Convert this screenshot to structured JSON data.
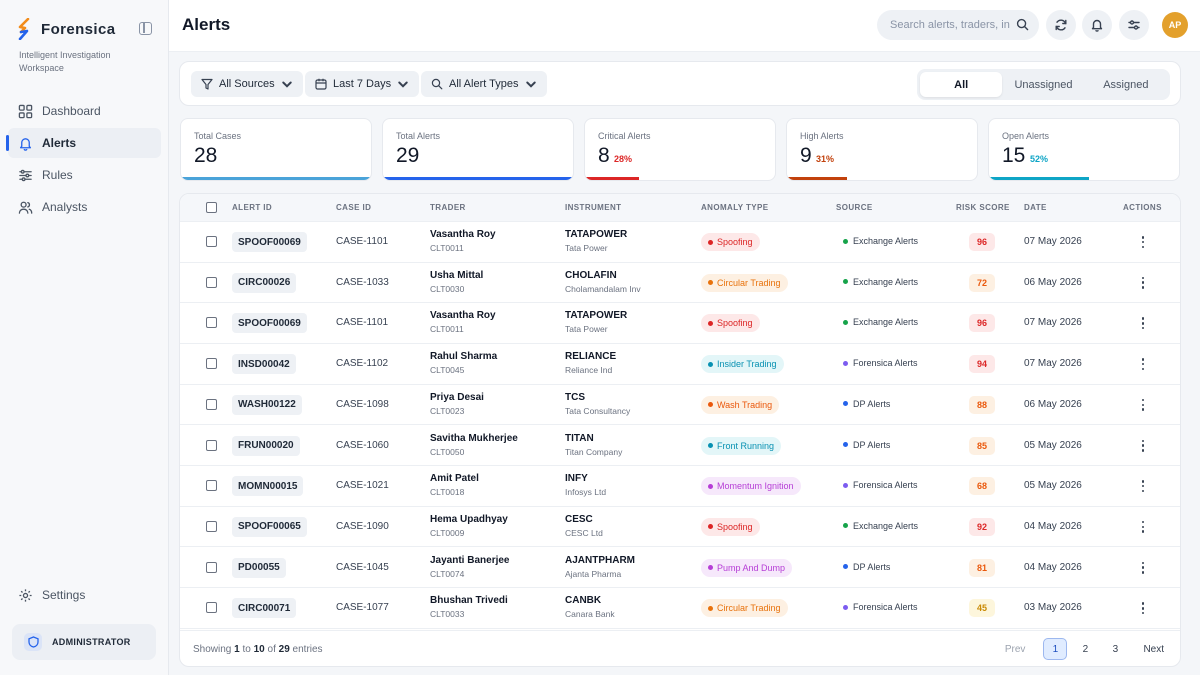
{
  "brand": {
    "name": "Forensica",
    "tagline": "Intelligent Investigation Workspace"
  },
  "sidebar": {
    "items": [
      {
        "label": "Dashboard",
        "icon": "dashboard-icon"
      },
      {
        "label": "Alerts",
        "icon": "bell-icon"
      },
      {
        "label": "Rules",
        "icon": "sliders-icon"
      },
      {
        "label": "Analysts",
        "icon": "users-icon"
      }
    ],
    "settings": "Settings",
    "admin": "ADMINISTRATOR"
  },
  "header": {
    "title": "Alerts",
    "search_placeholder": "Search alerts, traders, instruments...",
    "avatar_initials": "AP"
  },
  "filters": {
    "sources": "All Sources",
    "range": "Last 7 Days",
    "types": "All Alert Types",
    "tabs": [
      "All",
      "Unassigned",
      "Assigned"
    ]
  },
  "stats": [
    {
      "label": "Total Cases",
      "value": "28",
      "pct": "",
      "color": "#4aa3d9",
      "fill": 1.0
    },
    {
      "label": "Total Alerts",
      "value": "29",
      "pct": "",
      "color": "#2563eb",
      "fill": 1.0
    },
    {
      "label": "Critical Alerts",
      "value": "8",
      "pct": "28%",
      "color": "#dc2626",
      "fill": 0.28
    },
    {
      "label": "High Alerts",
      "value": "9",
      "pct": "31%",
      "color": "#c2410c",
      "fill": 0.31
    },
    {
      "label": "Open Alerts",
      "value": "15",
      "pct": "52%",
      "color": "#0ea5c6",
      "fill": 0.52
    }
  ],
  "table": {
    "columns": [
      "ALERT ID",
      "CASE ID",
      "TRADER",
      "INSTRUMENT",
      "ANOMALY TYPE",
      "SOURCE",
      "RISK SCORE",
      "DATE",
      "ACTIONS"
    ],
    "rows": [
      {
        "alert_id": "SPOOF00069",
        "case_id": "CASE-1101",
        "trader": "Vasantha Roy",
        "trader_id": "CLT0011",
        "instrument": "TATAPOWER",
        "instrument_name": "Tata Power",
        "anomaly": "Spoofing",
        "source": "Exchange Alerts",
        "risk": "96",
        "date": "07 May 2026"
      },
      {
        "alert_id": "CIRC00026",
        "case_id": "CASE-1033",
        "trader": "Usha Mittal",
        "trader_id": "CLT0030",
        "instrument": "CHOLAFIN",
        "instrument_name": "Cholamandalam Inv",
        "anomaly": "Circular Trading",
        "source": "Exchange Alerts",
        "risk": "72",
        "date": "06 May 2026"
      },
      {
        "alert_id": "SPOOF00069",
        "case_id": "CASE-1101",
        "trader": "Vasantha Roy",
        "trader_id": "CLT0011",
        "instrument": "TATAPOWER",
        "instrument_name": "Tata Power",
        "anomaly": "Spoofing",
        "source": "Exchange Alerts",
        "risk": "96",
        "date": "07 May 2026"
      },
      {
        "alert_id": "INSD00042",
        "case_id": "CASE-1102",
        "trader": "Rahul Sharma",
        "trader_id": "CLT0045",
        "instrument": "RELIANCE",
        "instrument_name": "Reliance Ind",
        "anomaly": "Insider Trading",
        "source": "Forensica Alerts",
        "risk": "94",
        "date": "07 May 2026"
      },
      {
        "alert_id": "WASH00122",
        "case_id": "CASE-1098",
        "trader": "Priya Desai",
        "trader_id": "CLT0023",
        "instrument": "TCS",
        "instrument_name": "Tata Consultancy",
        "anomaly": "Wash Trading",
        "source": "DP Alerts",
        "risk": "88",
        "date": "06 May 2026"
      },
      {
        "alert_id": "FRUN00020",
        "case_id": "CASE-1060",
        "trader": "Savitha Mukherjee",
        "trader_id": "CLT0050",
        "instrument": "TITAN",
        "instrument_name": "Titan Company",
        "anomaly": "Front Running",
        "source": "DP Alerts",
        "risk": "85",
        "date": "05 May 2026"
      },
      {
        "alert_id": "MOMN00015",
        "case_id": "CASE-1021",
        "trader": "Amit Patel",
        "trader_id": "CLT0018",
        "instrument": "INFY",
        "instrument_name": "Infosys Ltd",
        "anomaly": "Momentum Ignition",
        "source": "Forensica Alerts",
        "risk": "68",
        "date": "05 May 2026"
      },
      {
        "alert_id": "SPOOF00065",
        "case_id": "CASE-1090",
        "trader": "Hema Upadhyay",
        "trader_id": "CLT0009",
        "instrument": "CESC",
        "instrument_name": "CESC Ltd",
        "anomaly": "Spoofing",
        "source": "Exchange Alerts",
        "risk": "92",
        "date": "04 May 2026"
      },
      {
        "alert_id": "PD00055",
        "case_id": "CASE-1045",
        "trader": "Jayanti Banerjee",
        "trader_id": "CLT0074",
        "instrument": "AJANTPHARM",
        "instrument_name": "Ajanta Pharma",
        "anomaly": "Pump And Dump",
        "source": "DP Alerts",
        "risk": "81",
        "date": "04 May 2026"
      },
      {
        "alert_id": "CIRC00071",
        "case_id": "CASE-1077",
        "trader": "Bhushan Trivedi",
        "trader_id": "CLT0033",
        "instrument": "CANBK",
        "instrument_name": "Canara Bank",
        "anomaly": "Circular Trading",
        "source": "Forensica Alerts",
        "risk": "45",
        "date": "03 May 2026"
      }
    ]
  },
  "anomaly_colors": {
    "Spoofing": {
      "bg": "#fde8e8",
      "fg": "#dc2626"
    },
    "Circular Trading": {
      "bg": "#fdf0e2",
      "fg": "#e8720c"
    },
    "Insider Trading": {
      "bg": "#e3f6f8",
      "fg": "#0891b2"
    },
    "Wash Trading": {
      "bg": "#fdf0e2",
      "fg": "#ea580c"
    },
    "Front Running": {
      "bg": "#e3f6f8",
      "fg": "#0891b2"
    },
    "Momentum Ignition": {
      "bg": "#f6e8fb",
      "fg": "#b63dd6"
    },
    "Pump And Dump": {
      "bg": "#f6e8fb",
      "fg": "#b63dd6"
    }
  },
  "source_colors": {
    "Exchange Alerts": "#16a34a",
    "Forensica Alerts": "#7c5cf0",
    "DP Alerts": "#2563eb"
  },
  "risk_colors": {
    "critical": {
      "bg": "#fde8e8",
      "fg": "#dc2626"
    },
    "high": {
      "bg": "#fdf0e2",
      "fg": "#ea580c"
    },
    "medium": {
      "bg": "#fdf6dc",
      "fg": "#ca8a04"
    }
  },
  "footer": {
    "prefix": "Showing",
    "from": "1",
    "to_word": "to",
    "to": "10",
    "of_word": "of",
    "total": "29",
    "suffix": "entries",
    "prev": "Prev",
    "pages": [
      "1",
      "2",
      "3"
    ],
    "next": "Next"
  }
}
